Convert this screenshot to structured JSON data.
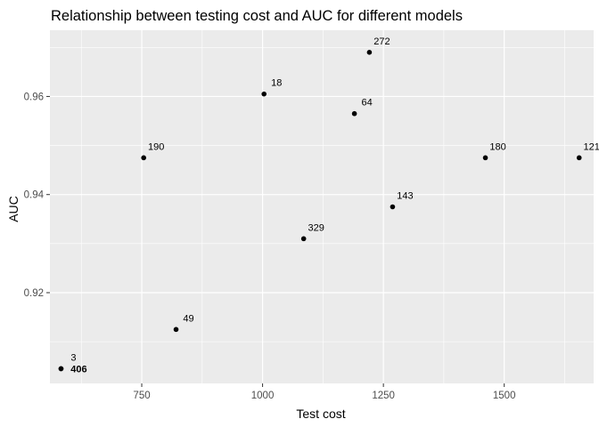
{
  "chart_data": {
    "type": "scatter",
    "title": "Relationship between testing cost and AUC for different models",
    "xlabel": "Test cost",
    "ylabel": "AUC",
    "xlim": [
      560,
      1685
    ],
    "ylim": [
      0.9015,
      0.9735
    ],
    "x_ticks": [
      750,
      1000,
      1250,
      1500
    ],
    "x_tick_labels": [
      "750",
      "1000",
      "1250",
      "1500"
    ],
    "y_ticks": [
      0.92,
      0.94,
      0.96
    ],
    "y_tick_labels": [
      "0.92",
      "0.94",
      "0.96"
    ],
    "grid": true,
    "legend": "none",
    "colors": {
      "panel": "#ebebeb",
      "grid": "#ffffff",
      "point": "#000000"
    },
    "points": [
      {
        "label": "3",
        "x": 583,
        "y": 0.9045
      },
      {
        "label": "406",
        "x": 583,
        "y": 0.9045
      },
      {
        "label": "49",
        "x": 821,
        "y": 0.9125
      },
      {
        "label": "190",
        "x": 754,
        "y": 0.9475
      },
      {
        "label": "18",
        "x": 1003,
        "y": 0.9605
      },
      {
        "label": "329",
        "x": 1085,
        "y": 0.931
      },
      {
        "label": "64",
        "x": 1190,
        "y": 0.9565
      },
      {
        "label": "272",
        "x": 1221,
        "y": 0.969
      },
      {
        "label": "143",
        "x": 1269,
        "y": 0.9375
      },
      {
        "label": "180",
        "x": 1461,
        "y": 0.9475
      },
      {
        "label": "121",
        "x": 1655,
        "y": 0.9475
      }
    ]
  }
}
